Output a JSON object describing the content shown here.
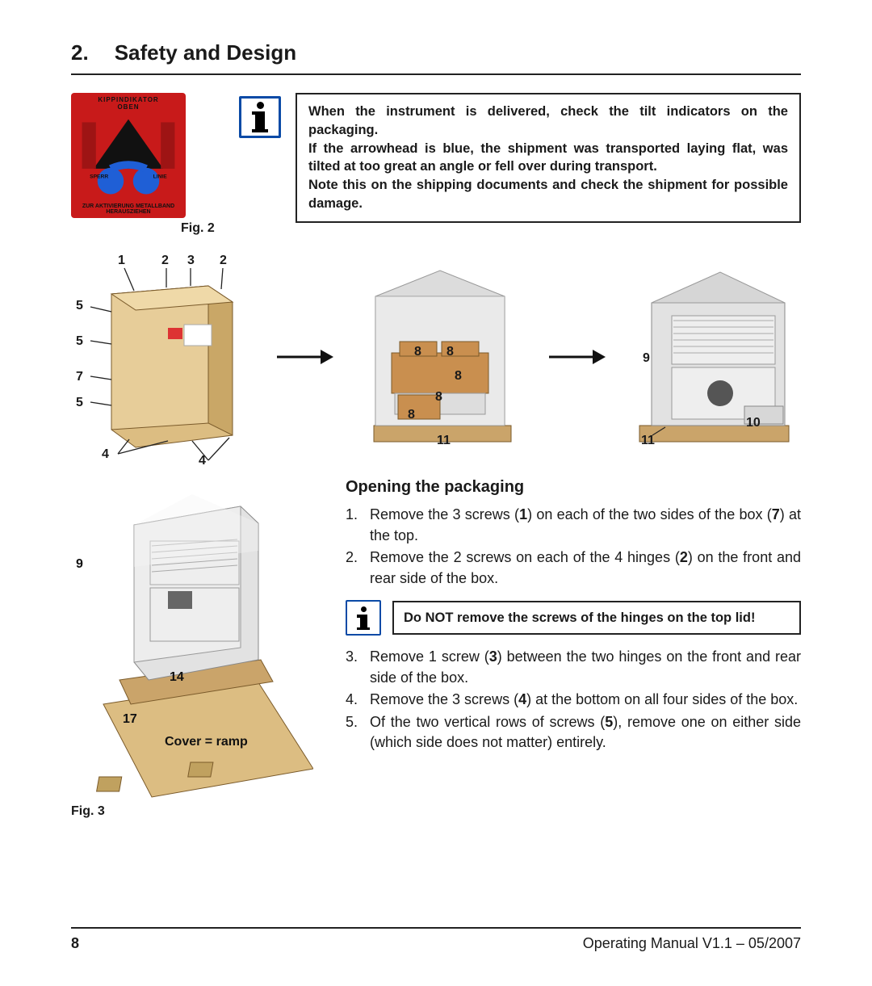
{
  "header": {
    "section_number": "2.",
    "section_title": "Safety and Design"
  },
  "tilt_indicator": {
    "top_text": "KIPPINDIKATOR",
    "oben_text": "OBEN",
    "sperr_text": "SPERR",
    "linie_text": "LINIE",
    "bottom_text": "ZUR AKTIVIERUNG METALLBAND HERAUSZIEHEN",
    "bg_color": "#c81a1a",
    "arrow_color": "#111111",
    "ball_color": "#1f5fd6"
  },
  "fig2": {
    "label": "Fig. 2"
  },
  "info_box": {
    "border_color": "#0a4aa6",
    "p1": "When the instrument is delivered, check the tilt indicators on the packaging.",
    "p2": "If the arrowhead is blue, the shipment was transported laying flat, was tilted at too great an angle or fell over during transport.",
    "p3": "Note this on the shipping documents and check the shipment for possible damage."
  },
  "crate": {
    "callouts": {
      "c1": "1",
      "c2a": "2",
      "c3": "3",
      "c2b": "2",
      "c5a": "5",
      "c5b": "5",
      "c7": "7",
      "c5c": "5",
      "c4a": "4",
      "c4b": "4"
    },
    "fill": "#d9b97a",
    "edge": "#7a5a2a",
    "line": "#222222"
  },
  "machine_mid": {
    "callouts": {
      "c8a": "8",
      "c8b": "8",
      "c8c": "8",
      "c8d": "8",
      "c8e": "8",
      "c11": "11"
    }
  },
  "machine_right": {
    "callouts": {
      "c9": "9",
      "c10": "10",
      "c11": "11"
    }
  },
  "ramp": {
    "callouts": {
      "c9": "9",
      "c14": "14",
      "c17": "17"
    },
    "cover_label": "Cover = ramp"
  },
  "fig3": {
    "label": "Fig. 3"
  },
  "opening": {
    "heading": "Opening the packaging",
    "steps": [
      "Remove the 3 screws (<b>1</b>) on each of the two sides of the box (<b>7</b>) at the top.",
      "Remove the 2 screws on each of the 4 hinges (<b>2</b>) on the front and rear side of the box.",
      "Remove 1 screw (<b>3</b>) between the two hinges on the front and rear side of the box.",
      "Remove the 3 screws (<b>4</b>) at the bottom on all four sides of the box.",
      "Of the two vertical rows of screws (<b>5</b>), remove one on either side (which side does not matter) entirely."
    ],
    "inline_note": "Do NOT remove the screws of the hinges on the top lid!"
  },
  "footer": {
    "page": "8",
    "right": "Operating Manual V1.1 – 05/2007"
  }
}
